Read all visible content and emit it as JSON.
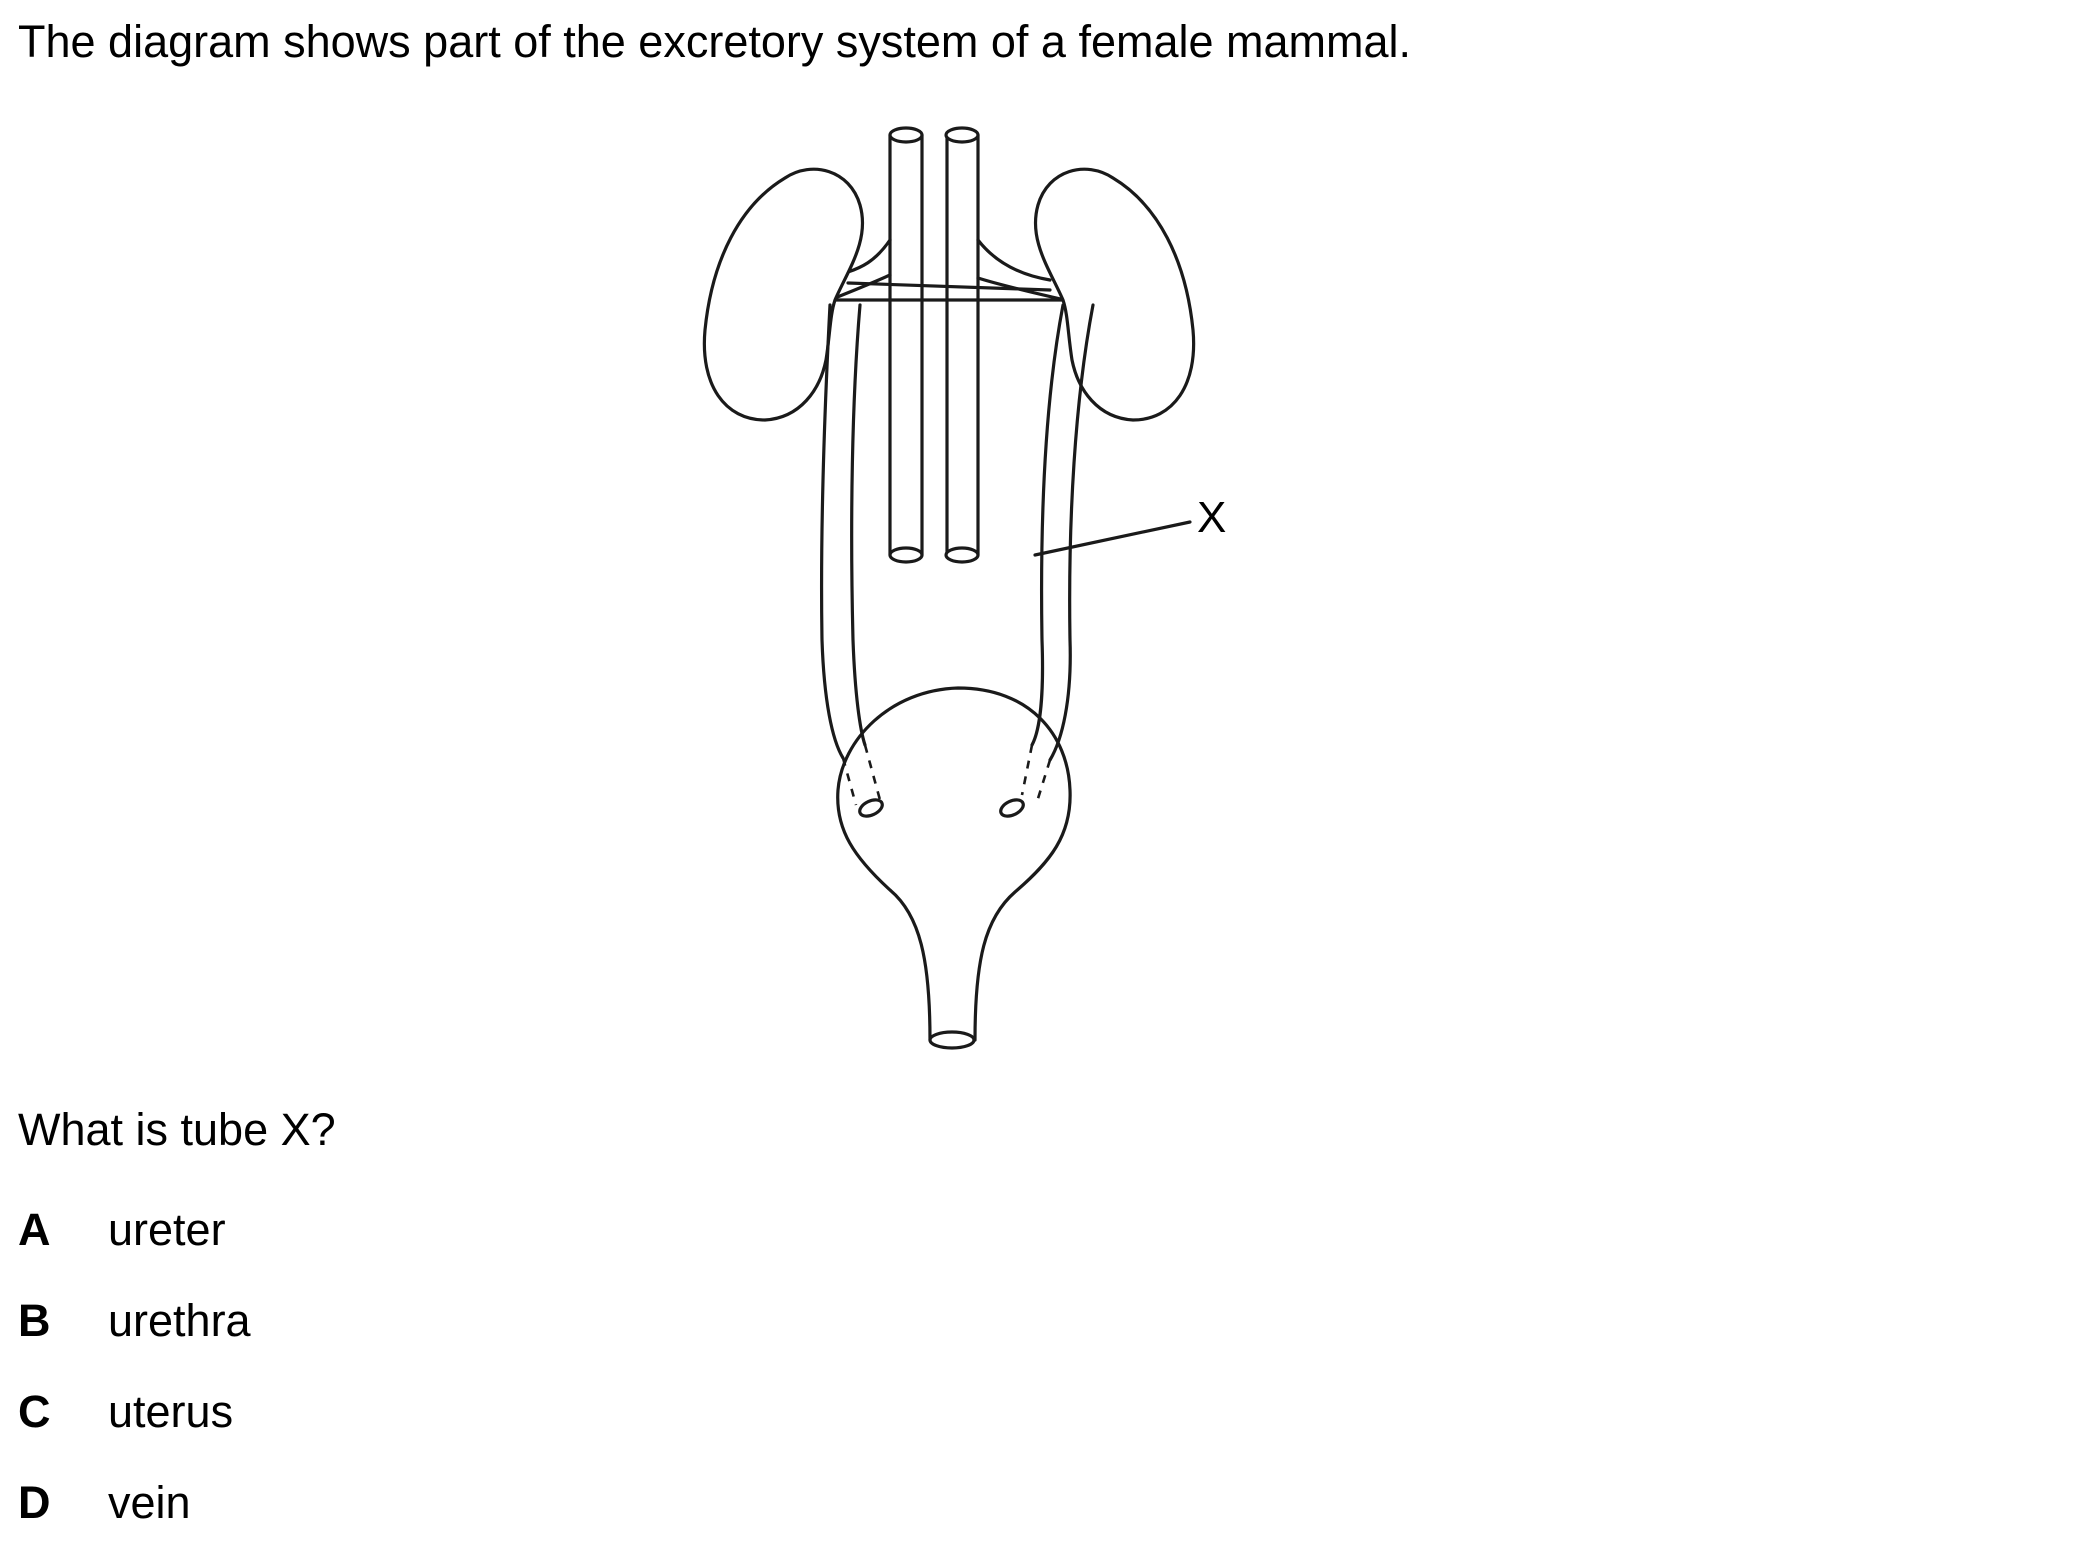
{
  "intro_text": "The diagram shows part of the excretory system of a female mammal.",
  "diagram": {
    "label_x": "X"
  },
  "question_text": "What is tube X?",
  "options": [
    {
      "letter": "A",
      "text": "ureter"
    },
    {
      "letter": "B",
      "text": "urethra"
    },
    {
      "letter": "C",
      "text": "uterus"
    },
    {
      "letter": "D",
      "text": "vein"
    }
  ]
}
